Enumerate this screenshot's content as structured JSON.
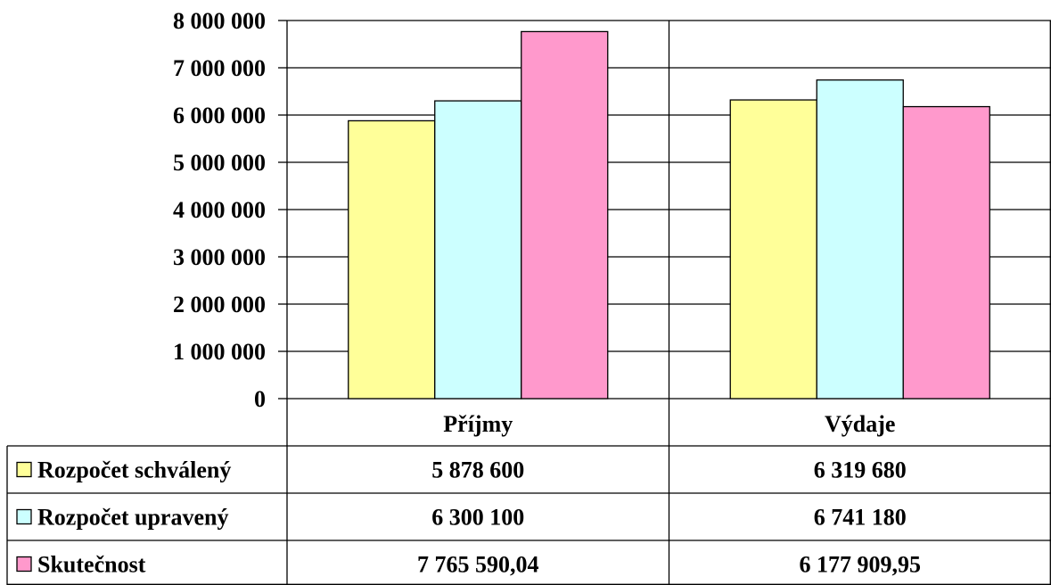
{
  "chart_data": {
    "type": "bar",
    "categories": [
      "Příjmy",
      "Výdaje"
    ],
    "series": [
      {
        "name": "Rozpočet schválený",
        "values": [
          5878600,
          6319680
        ],
        "labels": [
          "5 878 600",
          "6 319 680"
        ],
        "color": "#ffff99"
      },
      {
        "name": "Rozpočet upravený",
        "values": [
          6300100,
          6741180
        ],
        "labels": [
          "6 300 100",
          "6 741 180"
        ],
        "color": "#ccffff"
      },
      {
        "name": "Skutečnost",
        "values": [
          7765590.04,
          6177909.95
        ],
        "labels": [
          "7 765 590,04",
          "6 177 909,95"
        ],
        "color": "#ff99cc"
      }
    ],
    "ylim": [
      0,
      8000000
    ],
    "yticks": [
      0,
      1000000,
      2000000,
      3000000,
      4000000,
      5000000,
      6000000,
      7000000,
      8000000
    ],
    "ytick_labels": [
      "0",
      "1 000 000",
      "2 000 000",
      "3 000 000",
      "4 000 000",
      "5 000 000",
      "6 000 000",
      "7 000 000",
      "8 000 000"
    ],
    "grid": true,
    "data_table": true,
    "title": "",
    "xlabel": "",
    "ylabel": ""
  }
}
